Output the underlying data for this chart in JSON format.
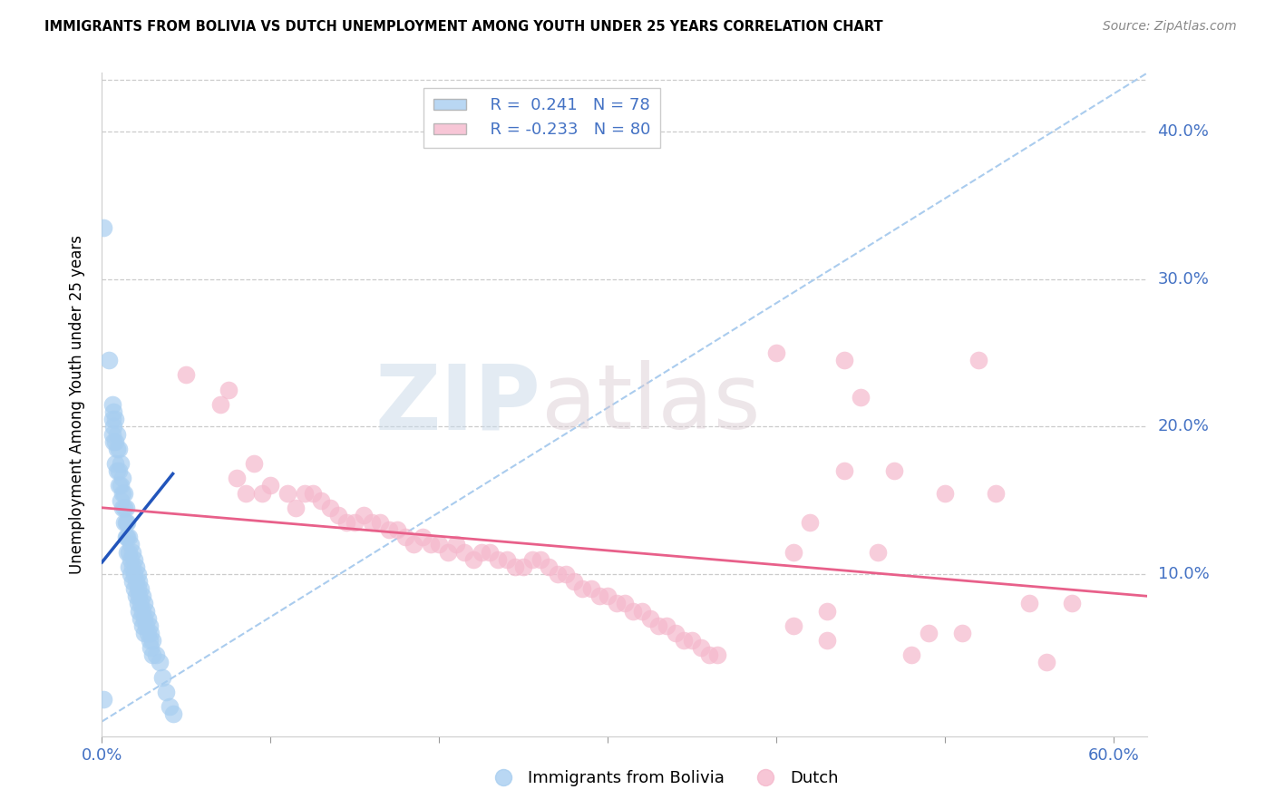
{
  "title": "IMMIGRANTS FROM BOLIVIA VS DUTCH UNEMPLOYMENT AMONG YOUTH UNDER 25 YEARS CORRELATION CHART",
  "source": "Source: ZipAtlas.com",
  "ylabel": "Unemployment Among Youth under 25 years",
  "xlim": [
    0.0,
    0.62
  ],
  "ylim": [
    -0.01,
    0.44
  ],
  "yticks": [
    0.0,
    0.1,
    0.2,
    0.3,
    0.4
  ],
  "ytick_labels": [
    "",
    "10.0%",
    "20.0%",
    "30.0%",
    "40.0%"
  ],
  "xticks": [
    0.0,
    0.1,
    0.2,
    0.3,
    0.4,
    0.5,
    0.6
  ],
  "xtick_labels": [
    "0.0%",
    "",
    "",
    "",
    "",
    "",
    "60.0%"
  ],
  "blue_R": 0.241,
  "blue_N": 78,
  "pink_R": -0.233,
  "pink_N": 80,
  "blue_color": "#a8cef0",
  "pink_color": "#f5b8cc",
  "blue_line_color": "#2255bb",
  "pink_line_color": "#e8608a",
  "blue_scatter": [
    [
      0.001,
      0.335
    ],
    [
      0.004,
      0.245
    ],
    [
      0.006,
      0.215
    ],
    [
      0.006,
      0.205
    ],
    [
      0.006,
      0.195
    ],
    [
      0.007,
      0.21
    ],
    [
      0.007,
      0.2
    ],
    [
      0.007,
      0.19
    ],
    [
      0.008,
      0.205
    ],
    [
      0.008,
      0.19
    ],
    [
      0.008,
      0.175
    ],
    [
      0.009,
      0.195
    ],
    [
      0.009,
      0.185
    ],
    [
      0.009,
      0.17
    ],
    [
      0.01,
      0.185
    ],
    [
      0.01,
      0.17
    ],
    [
      0.01,
      0.16
    ],
    [
      0.011,
      0.175
    ],
    [
      0.011,
      0.16
    ],
    [
      0.011,
      0.15
    ],
    [
      0.012,
      0.165
    ],
    [
      0.012,
      0.155
    ],
    [
      0.012,
      0.145
    ],
    [
      0.013,
      0.155
    ],
    [
      0.013,
      0.145
    ],
    [
      0.013,
      0.135
    ],
    [
      0.014,
      0.145
    ],
    [
      0.014,
      0.135
    ],
    [
      0.014,
      0.125
    ],
    [
      0.015,
      0.135
    ],
    [
      0.015,
      0.125
    ],
    [
      0.015,
      0.115
    ],
    [
      0.016,
      0.125
    ],
    [
      0.016,
      0.115
    ],
    [
      0.016,
      0.105
    ],
    [
      0.017,
      0.12
    ],
    [
      0.017,
      0.11
    ],
    [
      0.017,
      0.1
    ],
    [
      0.018,
      0.115
    ],
    [
      0.018,
      0.105
    ],
    [
      0.018,
      0.095
    ],
    [
      0.019,
      0.11
    ],
    [
      0.019,
      0.1
    ],
    [
      0.019,
      0.09
    ],
    [
      0.02,
      0.105
    ],
    [
      0.02,
      0.095
    ],
    [
      0.02,
      0.085
    ],
    [
      0.021,
      0.1
    ],
    [
      0.021,
      0.09
    ],
    [
      0.021,
      0.08
    ],
    [
      0.022,
      0.095
    ],
    [
      0.022,
      0.085
    ],
    [
      0.022,
      0.075
    ],
    [
      0.023,
      0.09
    ],
    [
      0.023,
      0.08
    ],
    [
      0.023,
      0.07
    ],
    [
      0.024,
      0.085
    ],
    [
      0.024,
      0.075
    ],
    [
      0.024,
      0.065
    ],
    [
      0.025,
      0.08
    ],
    [
      0.025,
      0.07
    ],
    [
      0.025,
      0.06
    ],
    [
      0.026,
      0.075
    ],
    [
      0.026,
      0.065
    ],
    [
      0.027,
      0.07
    ],
    [
      0.027,
      0.06
    ],
    [
      0.028,
      0.065
    ],
    [
      0.028,
      0.055
    ],
    [
      0.029,
      0.06
    ],
    [
      0.029,
      0.05
    ],
    [
      0.03,
      0.055
    ],
    [
      0.03,
      0.045
    ],
    [
      0.032,
      0.045
    ],
    [
      0.034,
      0.04
    ],
    [
      0.036,
      0.03
    ],
    [
      0.038,
      0.02
    ],
    [
      0.04,
      0.01
    ],
    [
      0.042,
      0.005
    ],
    [
      0.001,
      0.015
    ]
  ],
  "pink_scatter": [
    [
      0.05,
      0.235
    ],
    [
      0.07,
      0.215
    ],
    [
      0.075,
      0.225
    ],
    [
      0.08,
      0.165
    ],
    [
      0.085,
      0.155
    ],
    [
      0.09,
      0.175
    ],
    [
      0.095,
      0.155
    ],
    [
      0.1,
      0.16
    ],
    [
      0.11,
      0.155
    ],
    [
      0.115,
      0.145
    ],
    [
      0.12,
      0.155
    ],
    [
      0.125,
      0.155
    ],
    [
      0.13,
      0.15
    ],
    [
      0.135,
      0.145
    ],
    [
      0.14,
      0.14
    ],
    [
      0.145,
      0.135
    ],
    [
      0.15,
      0.135
    ],
    [
      0.155,
      0.14
    ],
    [
      0.16,
      0.135
    ],
    [
      0.165,
      0.135
    ],
    [
      0.17,
      0.13
    ],
    [
      0.175,
      0.13
    ],
    [
      0.18,
      0.125
    ],
    [
      0.185,
      0.12
    ],
    [
      0.19,
      0.125
    ],
    [
      0.195,
      0.12
    ],
    [
      0.2,
      0.12
    ],
    [
      0.205,
      0.115
    ],
    [
      0.21,
      0.12
    ],
    [
      0.215,
      0.115
    ],
    [
      0.22,
      0.11
    ],
    [
      0.225,
      0.115
    ],
    [
      0.23,
      0.115
    ],
    [
      0.235,
      0.11
    ],
    [
      0.24,
      0.11
    ],
    [
      0.245,
      0.105
    ],
    [
      0.25,
      0.105
    ],
    [
      0.255,
      0.11
    ],
    [
      0.26,
      0.11
    ],
    [
      0.265,
      0.105
    ],
    [
      0.27,
      0.1
    ],
    [
      0.275,
      0.1
    ],
    [
      0.28,
      0.095
    ],
    [
      0.285,
      0.09
    ],
    [
      0.29,
      0.09
    ],
    [
      0.295,
      0.085
    ],
    [
      0.3,
      0.085
    ],
    [
      0.305,
      0.08
    ],
    [
      0.31,
      0.08
    ],
    [
      0.315,
      0.075
    ],
    [
      0.32,
      0.075
    ],
    [
      0.325,
      0.07
    ],
    [
      0.33,
      0.065
    ],
    [
      0.335,
      0.065
    ],
    [
      0.34,
      0.06
    ],
    [
      0.345,
      0.055
    ],
    [
      0.35,
      0.055
    ],
    [
      0.355,
      0.05
    ],
    [
      0.36,
      0.045
    ],
    [
      0.365,
      0.045
    ],
    [
      0.4,
      0.25
    ],
    [
      0.41,
      0.115
    ],
    [
      0.42,
      0.135
    ],
    [
      0.43,
      0.055
    ],
    [
      0.44,
      0.245
    ],
    [
      0.45,
      0.22
    ],
    [
      0.47,
      0.17
    ],
    [
      0.48,
      0.045
    ],
    [
      0.49,
      0.06
    ],
    [
      0.5,
      0.155
    ],
    [
      0.51,
      0.06
    ],
    [
      0.52,
      0.245
    ],
    [
      0.53,
      0.155
    ],
    [
      0.55,
      0.08
    ],
    [
      0.56,
      0.04
    ],
    [
      0.575,
      0.08
    ],
    [
      0.44,
      0.17
    ],
    [
      0.46,
      0.115
    ],
    [
      0.41,
      0.065
    ],
    [
      0.43,
      0.075
    ]
  ],
  "blue_trend_x": [
    0.0,
    0.042
  ],
  "blue_trend_y": [
    0.108,
    0.168
  ],
  "pink_trend_x": [
    0.0,
    0.62
  ],
  "pink_trend_y": [
    0.145,
    0.085
  ],
  "diag_line_x": [
    0.0,
    0.62
  ],
  "diag_line_y": [
    0.0,
    0.44
  ],
  "diag_line_color": "#aaccee",
  "watermark_zip": "ZIP",
  "watermark_atlas": "atlas",
  "title_fontsize": 10.5,
  "axis_label_color": "#4472c4",
  "tick_color": "#4472c4",
  "grid_color": "#cccccc"
}
